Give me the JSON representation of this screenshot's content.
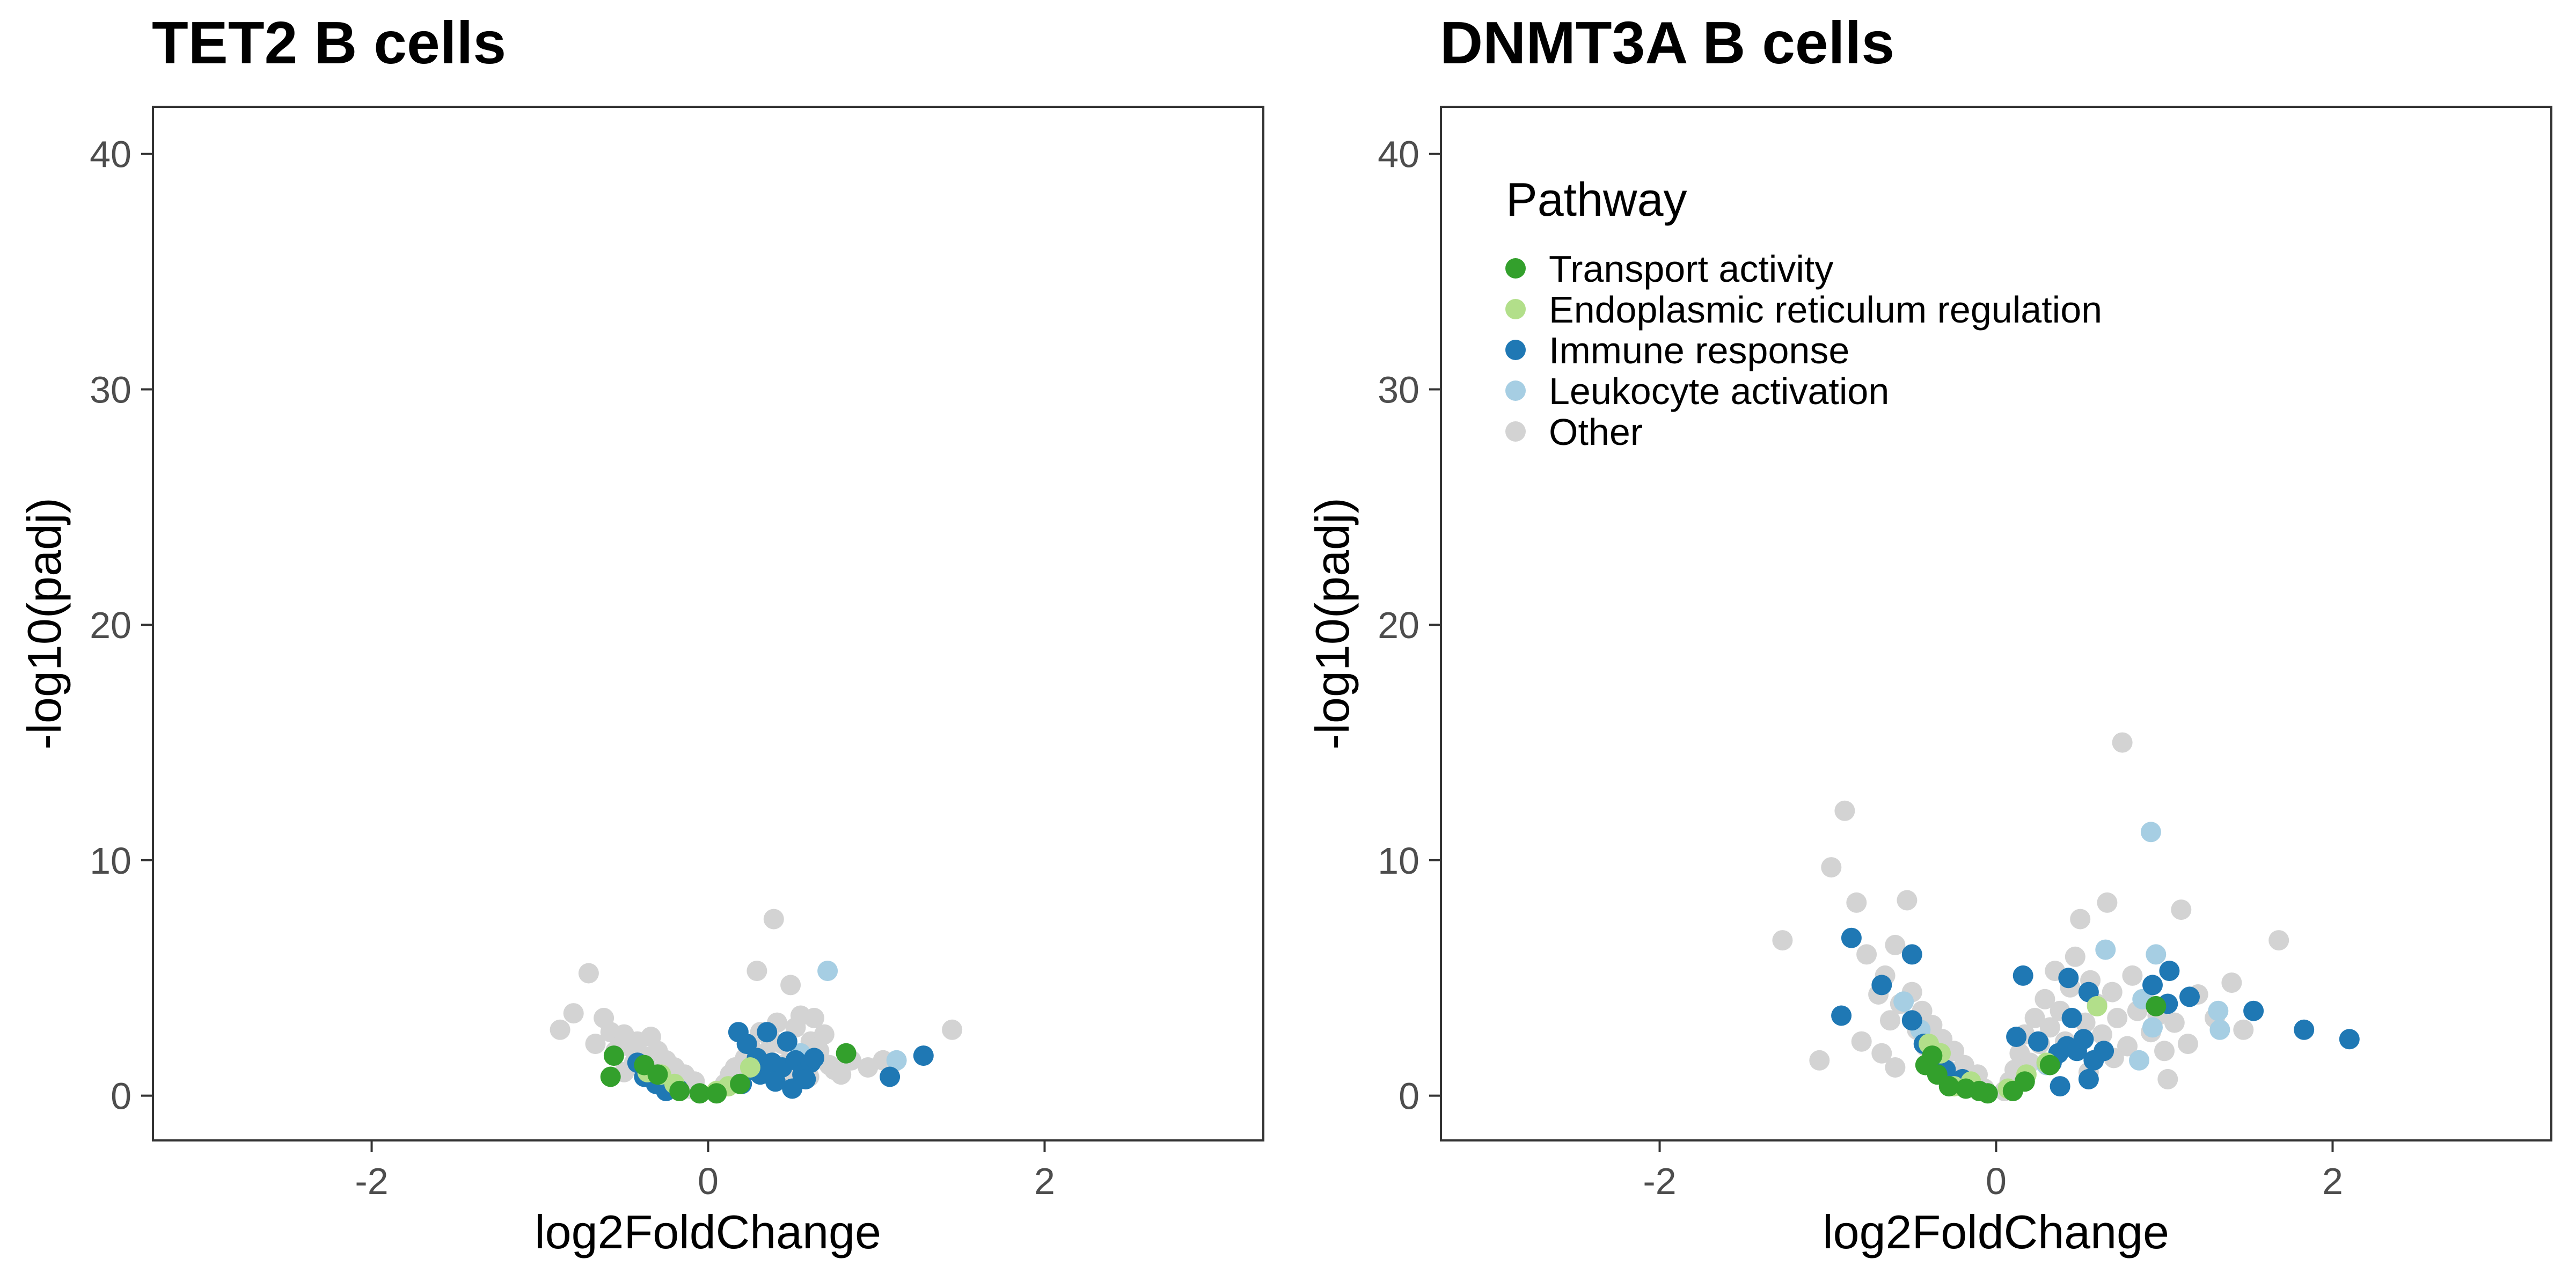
{
  "chart_data": [
    {
      "type": "scatter",
      "title": "TET2 B cells",
      "xlabel": "log2FoldChange",
      "ylabel": "-log10(padj)",
      "xlim": [
        -3.3,
        3.3
      ],
      "ylim": [
        -1.9,
        42.0
      ],
      "xticks": [
        -2,
        0,
        2
      ],
      "xtick_labels": [
        "-2",
        "0",
        "2"
      ],
      "yticks": [
        0,
        10,
        20,
        30,
        40
      ],
      "ytick_labels": [
        "0",
        "10",
        "20",
        "30",
        "40"
      ],
      "grid": false,
      "legend": null,
      "series": [
        {
          "name": "Other",
          "color": "#d3d3d3",
          "points": [
            [
              -0.88,
              2.8
            ],
            [
              -0.8,
              3.5
            ],
            [
              -0.71,
              5.2
            ],
            [
              -0.67,
              2.2
            ],
            [
              -0.62,
              3.3
            ],
            [
              -0.58,
              2.7
            ],
            [
              -0.55,
              1.9
            ],
            [
              -0.5,
              2.6
            ],
            [
              -0.47,
              2.1
            ],
            [
              -0.44,
              1.4
            ],
            [
              -0.42,
              2.3
            ],
            [
              -0.39,
              1.7
            ],
            [
              -0.36,
              1.2
            ],
            [
              -0.34,
              2.5
            ],
            [
              -0.3,
              1.9
            ],
            [
              -0.28,
              0.9
            ],
            [
              -0.25,
              1.5
            ],
            [
              -0.22,
              0.7
            ],
            [
              -0.2,
              1.2
            ],
            [
              -0.17,
              0.5
            ],
            [
              -0.14,
              0.9
            ],
            [
              -0.11,
              0.3
            ],
            [
              -0.08,
              0.6
            ],
            [
              0.06,
              0.2
            ],
            [
              0.1,
              0.5
            ],
            [
              0.13,
              0.9
            ],
            [
              0.16,
              1.2
            ],
            [
              0.19,
              0.6
            ],
            [
              0.22,
              1.6
            ],
            [
              0.25,
              2.1
            ],
            [
              0.27,
              1.1
            ],
            [
              0.29,
              5.3
            ],
            [
              0.31,
              2.7
            ],
            [
              0.34,
              1.8
            ],
            [
              0.37,
              2.4
            ],
            [
              0.39,
              7.5
            ],
            [
              0.41,
              3.1
            ],
            [
              0.44,
              2.2
            ],
            [
              0.47,
              1.4
            ],
            [
              0.49,
              4.7
            ],
            [
              0.52,
              2.9
            ],
            [
              0.55,
              3.4
            ],
            [
              0.58,
              1.6
            ],
            [
              0.61,
              2.3
            ],
            [
              0.63,
              3.3
            ],
            [
              0.66,
              1.9
            ],
            [
              0.69,
              2.6
            ],
            [
              0.72,
              1.3
            ],
            [
              0.75,
              1.1
            ],
            [
              0.79,
              0.9
            ],
            [
              0.85,
              1.5
            ],
            [
              0.95,
              1.2
            ],
            [
              1.04,
              1.5
            ],
            [
              1.1,
              1.4
            ],
            [
              1.45,
              2.8
            ],
            [
              -0.3,
              0.6
            ],
            [
              -0.5,
              1.0
            ],
            [
              0.45,
              0.9
            ],
            [
              0.6,
              0.8
            ]
          ]
        },
        {
          "name": "Leukocyte activation",
          "color": "#a6cee3",
          "points": [
            [
              0.71,
              5.3
            ],
            [
              0.55,
              1.8
            ],
            [
              1.12,
              1.5
            ],
            [
              -0.4,
              1.3
            ],
            [
              0.3,
              1.0
            ]
          ]
        },
        {
          "name": "Immune response",
          "color": "#1f78b4",
          "points": [
            [
              1.28,
              1.7
            ],
            [
              1.08,
              0.8
            ],
            [
              0.35,
              2.7
            ],
            [
              0.18,
              2.7
            ],
            [
              0.23,
              2.2
            ],
            [
              0.47,
              2.3
            ],
            [
              0.29,
              1.6
            ],
            [
              0.38,
              1.4
            ],
            [
              0.44,
              1.2
            ],
            [
              0.52,
              1.5
            ],
            [
              0.56,
              0.9
            ],
            [
              0.61,
              1.4
            ],
            [
              0.63,
              1.6
            ],
            [
              0.31,
              0.9
            ],
            [
              0.4,
              0.6
            ],
            [
              0.5,
              0.3
            ],
            [
              0.2,
              0.5
            ],
            [
              0.26,
              1.1
            ],
            [
              -0.42,
              1.4
            ],
            [
              -0.38,
              0.8
            ],
            [
              -0.31,
              0.5
            ],
            [
              -0.25,
              0.2
            ],
            [
              -0.18,
              0.3
            ],
            [
              0.58,
              0.7
            ]
          ]
        },
        {
          "name": "Endoplasmic reticulum regulation",
          "color": "#b2df8a",
          "points": [
            [
              0.25,
              1.2
            ],
            [
              -0.36,
              1.0
            ],
            [
              -0.2,
              0.5
            ],
            [
              0.12,
              0.4
            ],
            [
              -0.28,
              0.9
            ],
            [
              0.05,
              0.2
            ]
          ]
        },
        {
          "name": "Transport activity",
          "color": "#33a02c",
          "points": [
            [
              -0.56,
              1.7
            ],
            [
              -0.58,
              0.8
            ],
            [
              -0.38,
              1.3
            ],
            [
              -0.3,
              0.9
            ],
            [
              -0.17,
              0.2
            ],
            [
              -0.05,
              0.1
            ],
            [
              0.05,
              0.1
            ],
            [
              0.19,
              0.5
            ],
            [
              0.82,
              1.8
            ]
          ]
        }
      ]
    },
    {
      "type": "scatter",
      "title": "DNMT3A B cells",
      "xlabel": "log2FoldChange",
      "ylabel": "-log10(padj)",
      "xlim": [
        -3.3,
        3.3
      ],
      "ylim": [
        -1.9,
        42.0
      ],
      "xticks": [
        -2,
        0,
        2
      ],
      "xtick_labels": [
        "-2",
        "0",
        "2"
      ],
      "yticks": [
        0,
        10,
        20,
        30,
        40
      ],
      "ytick_labels": [
        "0",
        "10",
        "20",
        "30",
        "40"
      ],
      "grid": false,
      "legend": {
        "title": "Pathway",
        "placement": "top-left",
        "entries": [
          {
            "label": "Transport activity",
            "color": "#33a02c"
          },
          {
            "label": "Endoplasmic reticulum regulation",
            "color": "#b2df8a"
          },
          {
            "label": "Immune response",
            "color": "#1f78b4"
          },
          {
            "label": "Leukocyte activation",
            "color": "#a6cee3"
          },
          {
            "label": "Other",
            "color": "#d3d3d3"
          }
        ]
      },
      "series": [
        {
          "name": "Other",
          "color": "#d3d3d3",
          "points": [
            [
              -1.27,
              6.6
            ],
            [
              -1.05,
              1.5
            ],
            [
              -0.98,
              9.7
            ],
            [
              -0.9,
              12.1
            ],
            [
              -0.83,
              8.2
            ],
            [
              -0.77,
              6.0
            ],
            [
              -0.7,
              4.3
            ],
            [
              -0.66,
              5.1
            ],
            [
              -0.63,
              3.2
            ],
            [
              -0.6,
              6.4
            ],
            [
              -0.57,
              3.9
            ],
            [
              -0.53,
              8.3
            ],
            [
              -0.5,
              4.4
            ],
            [
              -0.47,
              2.8
            ],
            [
              -0.44,
              3.6
            ],
            [
              -0.42,
              2.1
            ],
            [
              -0.38,
              3.0
            ],
            [
              -0.35,
              1.6
            ],
            [
              -0.32,
              2.4
            ],
            [
              -0.29,
              1.1
            ],
            [
              -0.25,
              1.9
            ],
            [
              -0.22,
              0.8
            ],
            [
              -0.19,
              1.3
            ],
            [
              -0.15,
              0.5
            ],
            [
              -0.11,
              0.9
            ],
            [
              -0.07,
              0.3
            ],
            [
              0.05,
              0.2
            ],
            [
              0.08,
              0.6
            ],
            [
              0.11,
              1.1
            ],
            [
              0.14,
              1.8
            ],
            [
              0.17,
              2.6
            ],
            [
              0.2,
              1.4
            ],
            [
              0.23,
              3.3
            ],
            [
              0.26,
              2.2
            ],
            [
              0.29,
              4.1
            ],
            [
              0.32,
              2.9
            ],
            [
              0.35,
              5.3
            ],
            [
              0.38,
              3.6
            ],
            [
              0.41,
              2.3
            ],
            [
              0.44,
              4.6
            ],
            [
              0.47,
              5.9
            ],
            [
              0.5,
              7.5
            ],
            [
              0.53,
              3.1
            ],
            [
              0.56,
              4.9
            ],
            [
              0.6,
              3.9
            ],
            [
              0.63,
              2.6
            ],
            [
              0.66,
              8.2
            ],
            [
              0.69,
              4.4
            ],
            [
              0.72,
              3.3
            ],
            [
              0.75,
              15.0
            ],
            [
              0.78,
              2.1
            ],
            [
              0.81,
              5.1
            ],
            [
              0.84,
              3.6
            ],
            [
              0.88,
              4.1
            ],
            [
              0.92,
              2.7
            ],
            [
              0.96,
              3.4
            ],
            [
              1.0,
              1.9
            ],
            [
              1.02,
              0.7
            ],
            [
              1.06,
              3.1
            ],
            [
              1.1,
              7.9
            ],
            [
              1.14,
              2.2
            ],
            [
              1.2,
              4.3
            ],
            [
              1.3,
              3.3
            ],
            [
              1.4,
              4.8
            ],
            [
              1.47,
              2.8
            ],
            [
              1.68,
              6.6
            ],
            [
              -0.8,
              2.3
            ],
            [
              -0.68,
              1.8
            ],
            [
              -0.6,
              1.2
            ],
            [
              0.55,
              1.0
            ],
            [
              0.7,
              1.6
            ]
          ]
        },
        {
          "name": "Leukocyte activation",
          "color": "#a6cee3",
          "points": [
            [
              0.92,
              11.2
            ],
            [
              0.95,
              6.0
            ],
            [
              0.65,
              6.2
            ],
            [
              0.87,
              4.1
            ],
            [
              1.32,
              3.6
            ],
            [
              1.33,
              2.8
            ],
            [
              0.93,
              2.9
            ],
            [
              0.85,
              1.5
            ],
            [
              -0.55,
              4.0
            ],
            [
              -0.45,
              2.8
            ],
            [
              0.3,
              1.3
            ]
          ]
        },
        {
          "name": "Immune response",
          "color": "#1f78b4",
          "points": [
            [
              2.1,
              2.4
            ],
            [
              1.83,
              2.8
            ],
            [
              1.53,
              3.6
            ],
            [
              1.15,
              4.2
            ],
            [
              1.03,
              5.3
            ],
            [
              1.02,
              3.9
            ],
            [
              0.93,
              4.7
            ],
            [
              0.43,
              5.0
            ],
            [
              0.16,
              5.1
            ],
            [
              0.55,
              4.4
            ],
            [
              0.45,
              3.3
            ],
            [
              -0.5,
              6.0
            ],
            [
              -0.68,
              4.7
            ],
            [
              -0.86,
              6.7
            ],
            [
              -0.92,
              3.4
            ],
            [
              -0.5,
              3.2
            ],
            [
              -0.43,
              2.2
            ],
            [
              -0.38,
              1.6
            ],
            [
              0.12,
              2.5
            ],
            [
              0.25,
              2.3
            ],
            [
              0.33,
              1.4
            ],
            [
              0.37,
              1.8
            ],
            [
              0.42,
              2.1
            ],
            [
              0.48,
              1.9
            ],
            [
              0.52,
              2.4
            ],
            [
              0.58,
              1.5
            ],
            [
              0.64,
              1.9
            ],
            [
              0.38,
              0.4
            ],
            [
              0.55,
              0.7
            ],
            [
              -0.2,
              0.7
            ],
            [
              -0.3,
              1.1
            ]
          ]
        },
        {
          "name": "Endoplasmic reticulum regulation",
          "color": "#b2df8a",
          "points": [
            [
              0.6,
              3.8
            ],
            [
              0.3,
              1.4
            ],
            [
              -0.4,
              2.2
            ],
            [
              -0.33,
              1.8
            ],
            [
              0.18,
              0.9
            ],
            [
              -0.15,
              0.6
            ],
            [
              0.07,
              0.3
            ],
            [
              -0.25,
              0.4
            ]
          ]
        },
        {
          "name": "Transport activity",
          "color": "#33a02c",
          "points": [
            [
              0.95,
              3.8
            ],
            [
              0.32,
              1.3
            ],
            [
              0.17,
              0.6
            ],
            [
              0.1,
              0.2
            ],
            [
              -0.05,
              0.1
            ],
            [
              -0.1,
              0.2
            ],
            [
              -0.18,
              0.3
            ],
            [
              -0.28,
              0.4
            ],
            [
              -0.35,
              0.9
            ],
            [
              -0.42,
              1.3
            ],
            [
              -0.38,
              1.7
            ]
          ]
        }
      ]
    }
  ]
}
